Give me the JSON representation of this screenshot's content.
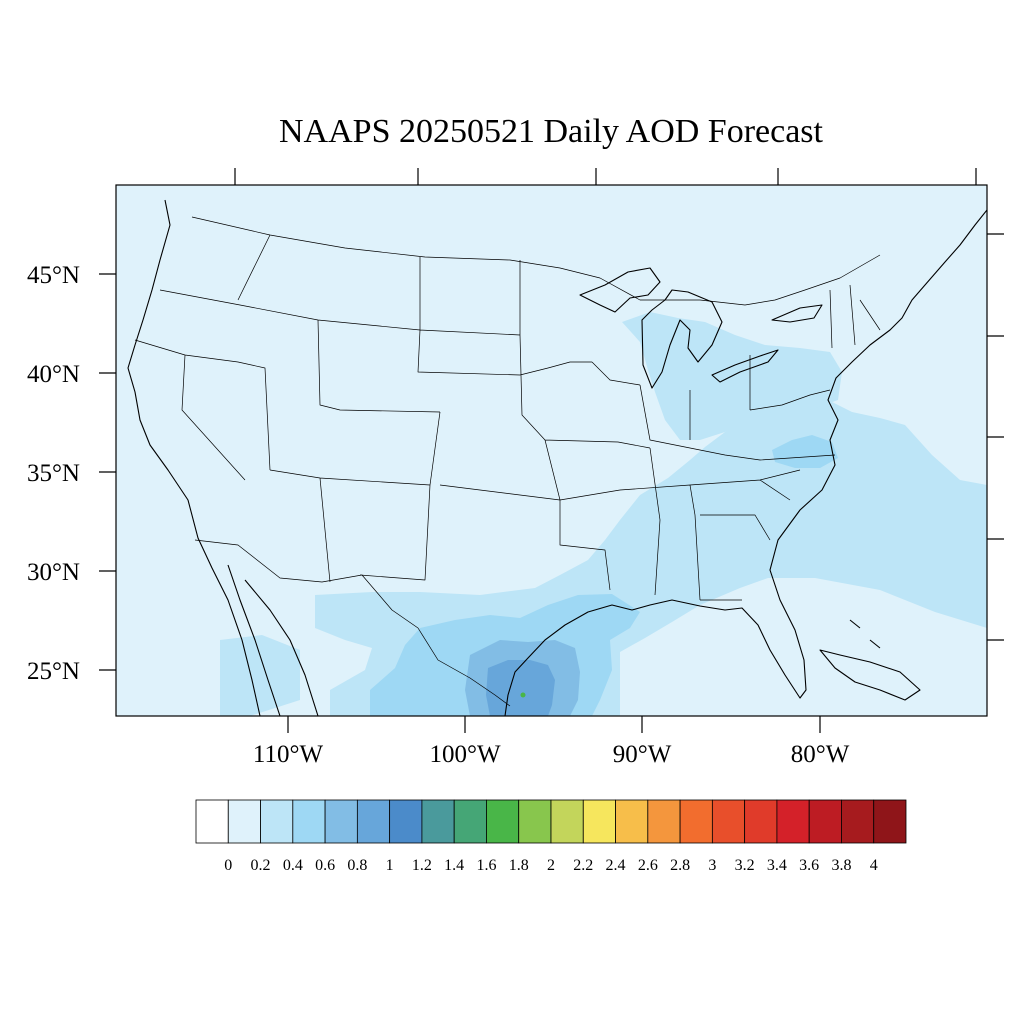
{
  "title": "NAAPS 20250521 Daily AOD Forecast",
  "colors": {
    "background_field": "#dff2fb"
  },
  "map": {
    "projection": "lambert-conformal",
    "region": "Contiguous United States",
    "lat_labels": [
      "45°N",
      "40°N",
      "35°N",
      "30°N",
      "25°N"
    ],
    "lon_labels": [
      "110°W",
      "100°W",
      "90°W",
      "80°W"
    ],
    "aod_plumes": [
      {
        "region": "Southern Texas / northern Mexico",
        "aod_range": [
          0.8,
          1.0
        ]
      },
      {
        "region": "Texas Gulf coast",
        "aod_range": [
          0.4,
          0.8
        ]
      },
      {
        "region": "Gulf coast to mid-Atlantic",
        "aod_range": [
          0.2,
          0.4
        ]
      },
      {
        "region": "Great Lakes / Michigan",
        "aod_range": [
          0.2,
          0.4
        ]
      },
      {
        "region": "Virginia / North Carolina",
        "aod_range": [
          0.4,
          0.6
        ]
      },
      {
        "region": "Western Atlantic offshore",
        "aod_range": [
          0.2,
          0.4
        ]
      },
      {
        "region": "Rest of domain",
        "aod_range": [
          0,
          0.2
        ]
      }
    ]
  },
  "colorbar": {
    "labels": [
      "0",
      "0.2",
      "0.4",
      "0.6",
      "0.8",
      "1",
      "1.2",
      "1.4",
      "1.6",
      "1.8",
      "2",
      "2.2",
      "2.4",
      "2.6",
      "2.8",
      "3",
      "3.2",
      "3.4",
      "3.6",
      "3.8",
      "4"
    ],
    "colors": [
      "#ffffff",
      "#dff2fb",
      "#bde5f7",
      "#9ed8f4",
      "#82bde5",
      "#67a6da",
      "#4b8bca",
      "#4a9a9c",
      "#45a676",
      "#49b648",
      "#88c64d",
      "#c3d55b",
      "#f6e65d",
      "#f7be4a",
      "#f4963d",
      "#f26d2e",
      "#e84f2b",
      "#e03b2a",
      "#d42129",
      "#bd1c23",
      "#a61b1e",
      "#8f1519"
    ]
  }
}
